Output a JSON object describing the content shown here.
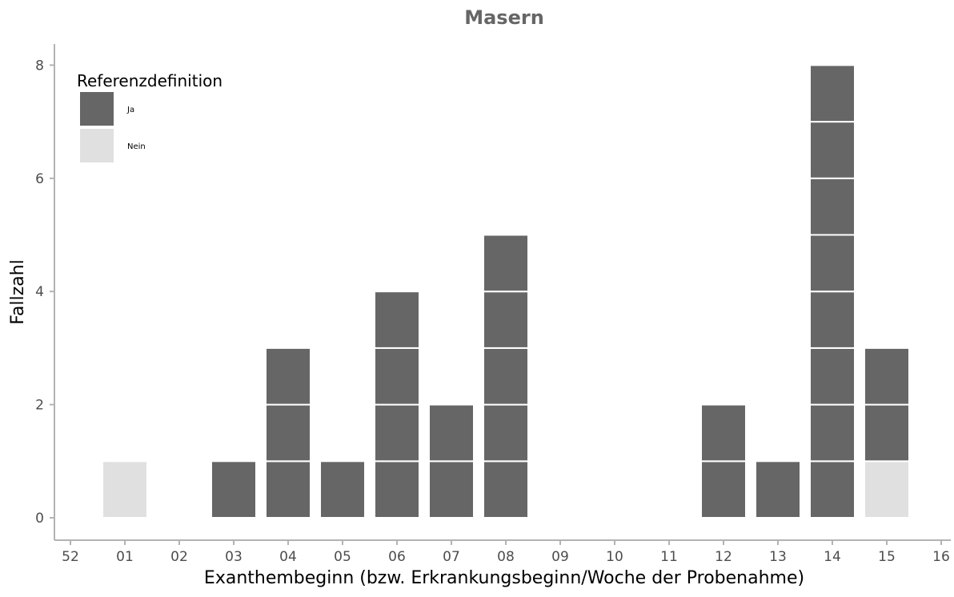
{
  "chart_data": {
    "type": "bar",
    "stacked": true,
    "title": "Masern",
    "xlabel": "Exanthembeginn (bzw. Erkrankungsbeginn/Woche der Probenahme)",
    "ylabel": "Fallzahl",
    "categories": [
      "52",
      "01",
      "02",
      "03",
      "04",
      "05",
      "06",
      "07",
      "08",
      "09",
      "10",
      "11",
      "12",
      "13",
      "14",
      "15",
      "16"
    ],
    "yticks": [
      0,
      2,
      4,
      6,
      8
    ],
    "ylim": [
      0,
      8
    ],
    "grid": false,
    "legend": {
      "title": "Referenzdefinition",
      "placement": "top-left"
    },
    "series": [
      {
        "name": "Ja",
        "color": "#666666",
        "values": [
          0,
          0,
          0,
          1,
          3,
          1,
          4,
          2,
          5,
          0,
          0,
          0,
          2,
          1,
          8,
          2,
          0
        ]
      },
      {
        "name": "Nein",
        "color": "#e0e0e0",
        "values": [
          0,
          1,
          0,
          0,
          0,
          0,
          0,
          0,
          0,
          0,
          0,
          0,
          0,
          0,
          0,
          1,
          0
        ]
      }
    ],
    "stack_order_bottom_to_top": [
      "Nein",
      "Ja"
    ]
  }
}
